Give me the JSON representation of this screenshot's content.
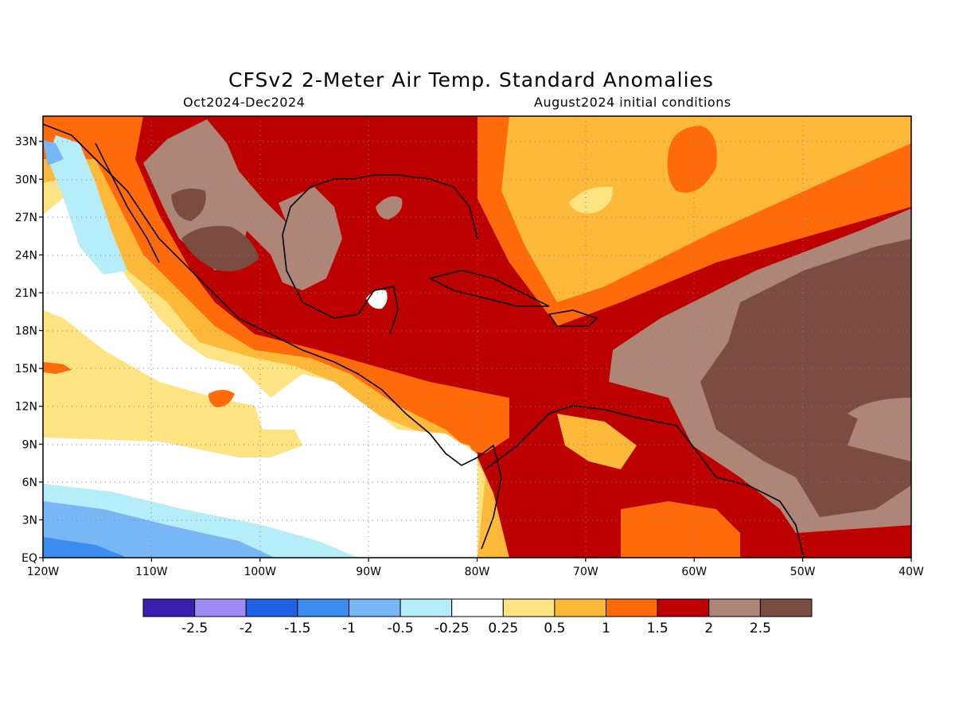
{
  "title": "CFSv2 2-Meter Air Temp. Standard Anomalies",
  "period": "Oct2024-Dec2024",
  "initial_conditions": "August2024 initial conditions",
  "map": {
    "lat_ticks": [
      "33N",
      "30N",
      "27N",
      "24N",
      "21N",
      "18N",
      "15N",
      "12N",
      "9N",
      "6N",
      "3N",
      "EQ"
    ],
    "lon_ticks": [
      "120W",
      "110W",
      "100W",
      "90W",
      "80W",
      "70W",
      "60W",
      "50W",
      "40W"
    ],
    "extent": {
      "lon_min": -120,
      "lon_max": -40,
      "lat_min": 0,
      "lat_max": 35
    },
    "grid": "dotted"
  },
  "colorbar": {
    "labels": [
      "-2.5",
      "-2",
      "-1.5",
      "-1",
      "-0.5",
      "-0.25",
      "0.25",
      "0.5",
      "1",
      "1.5",
      "2",
      "2.5"
    ],
    "colors": [
      "#3a20b0",
      "#9f8bf5",
      "#1f62e6",
      "#3c8df0",
      "#78b6f5",
      "#b5edf8",
      "#ffffff",
      "#fee383",
      "#fdba3a",
      "#ff6a0a",
      "#bd0000",
      "#ad8677",
      "#7b4d41"
    ]
  }
}
